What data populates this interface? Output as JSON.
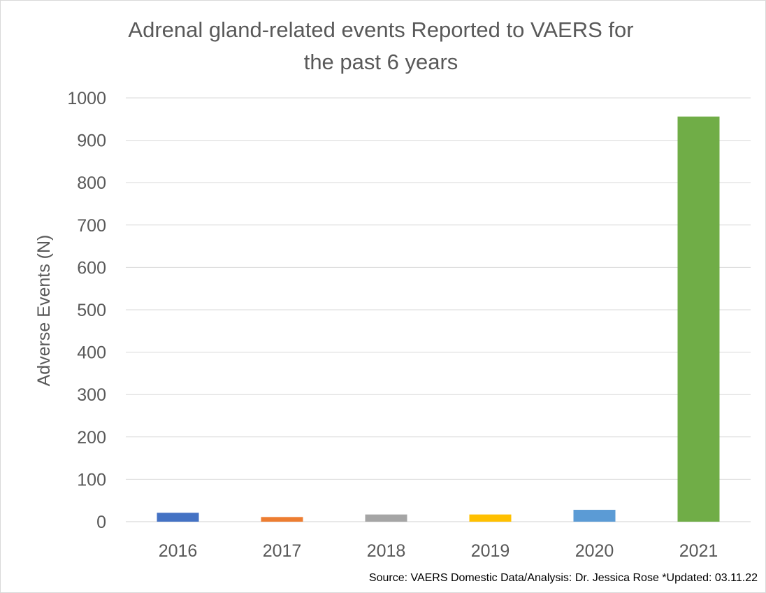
{
  "chart_data": {
    "type": "bar",
    "title_lines": [
      "Adrenal gland-related events Reported to VAERS for",
      "the past 6 years"
    ],
    "xlabel": "",
    "ylabel": "Adverse Events (N)",
    "categories": [
      "2016",
      "2017",
      "2018",
      "2019",
      "2020",
      "2021"
    ],
    "values": [
      21,
      11,
      17,
      17,
      28,
      956
    ],
    "colors": [
      "#4472c4",
      "#ed7d31",
      "#a5a5a5",
      "#ffc000",
      "#5b9bd5",
      "#70ad47"
    ],
    "ylim": [
      0,
      1000
    ],
    "yticks": [
      "0",
      "100",
      "200",
      "300",
      "400",
      "500",
      "600",
      "700",
      "800",
      "900",
      "1000"
    ],
    "grid": true,
    "legend": "none",
    "source": "Source: VAERS Domestic Data/Analysis: Dr. Jessica Rose *Updated: 03.11.22"
  }
}
